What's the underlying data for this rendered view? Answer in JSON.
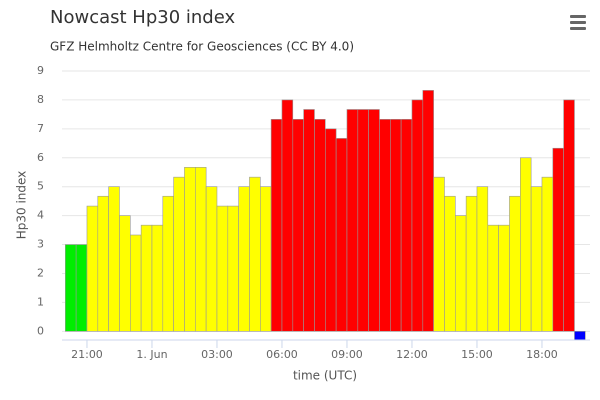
{
  "chart_data": {
    "type": "bar",
    "title": "Nowcast Hp30 index",
    "subtitle": "GFZ Helmholtz Centre for Geosciences (CC BY 4.0)",
    "x_label": "time (UTC)",
    "y_label": "Hp30 index",
    "categories": [
      null,
      null,
      "21:00",
      null,
      null,
      null,
      null,
      null,
      "1. Jun",
      null,
      null,
      null,
      null,
      null,
      "03:00",
      null,
      null,
      null,
      null,
      null,
      "06:00",
      null,
      null,
      null,
      null,
      null,
      "09:00",
      null,
      null,
      null,
      null,
      null,
      "12:00",
      null,
      null,
      null,
      null,
      null,
      "15:00",
      null,
      null,
      null,
      null,
      null,
      "18:00",
      null,
      null,
      null
    ],
    "values": [
      3,
      3,
      4.33,
      4.67,
      5,
      4,
      3.33,
      3.67,
      3.67,
      4.67,
      5.33,
      5.67,
      5.67,
      5,
      4.33,
      4.33,
      5,
      5.33,
      5,
      7.33,
      8,
      7.33,
      7.67,
      7.33,
      7,
      6.67,
      7.67,
      7.67,
      7.67,
      7.33,
      7.33,
      7.33,
      8,
      8.33,
      5.33,
      4.67,
      4,
      4.67,
      5,
      3.67,
      3.67,
      4.67,
      6,
      5,
      5.33,
      6.33,
      8,
      -0.3
    ],
    "colors": [
      "#00ee00",
      "#00ee00",
      "#ffff00",
      "#ffff00",
      "#ffff00",
      "#ffff00",
      "#ffff00",
      "#ffff00",
      "#ffff00",
      "#ffff00",
      "#ffff00",
      "#ffff00",
      "#ffff00",
      "#ffff00",
      "#ffff00",
      "#ffff00",
      "#ffff00",
      "#ffff00",
      "#ffff00",
      "#ff0000",
      "#ff0000",
      "#ff0000",
      "#ff0000",
      "#ff0000",
      "#ff0000",
      "#ff0000",
      "#ff0000",
      "#ff0000",
      "#ff0000",
      "#ff0000",
      "#ff0000",
      "#ff0000",
      "#ff0000",
      "#ff0000",
      "#ffff00",
      "#ffff00",
      "#ffff00",
      "#ffff00",
      "#ffff00",
      "#ffff00",
      "#ffff00",
      "#ffff00",
      "#ffff00",
      "#ffff00",
      "#ffff00",
      "#ff0000",
      "#ff0000",
      "#0000ff"
    ],
    "ylim": [
      -0.3,
      9
    ],
    "yticks": [
      0,
      1,
      2,
      3,
      4,
      5,
      6,
      7,
      8,
      9
    ],
    "grid": true
  }
}
